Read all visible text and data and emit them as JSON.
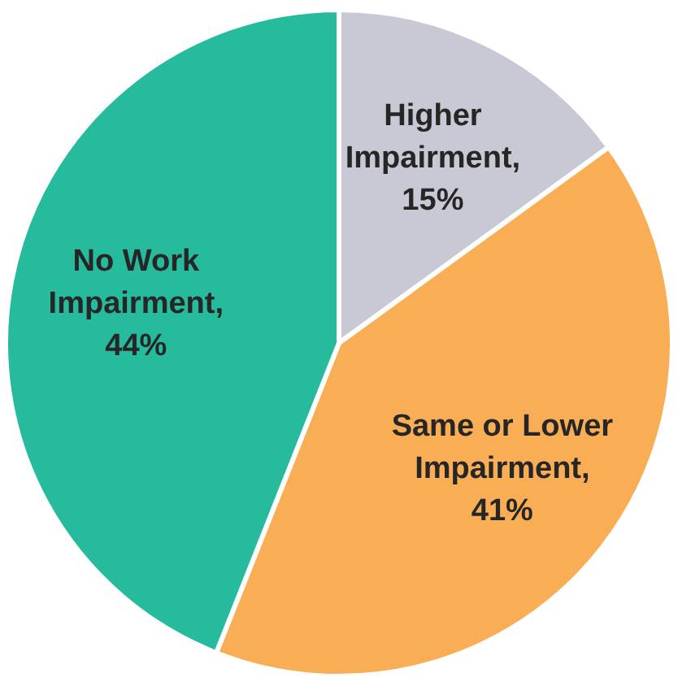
{
  "chart_data": {
    "type": "pie",
    "categories": [
      null,
      null,
      null
    ],
    "values": [
      15,
      41,
      44
    ],
    "colors": [
      "#c9c9d5",
      "#f9ae55",
      "#26bb9d"
    ],
    "value_labels": [
      "Higher Impairment, 15%",
      "Same or Lower Impairment, 41%",
      "No Work Impairment, 44%"
    ],
    "legend": false
  }
}
